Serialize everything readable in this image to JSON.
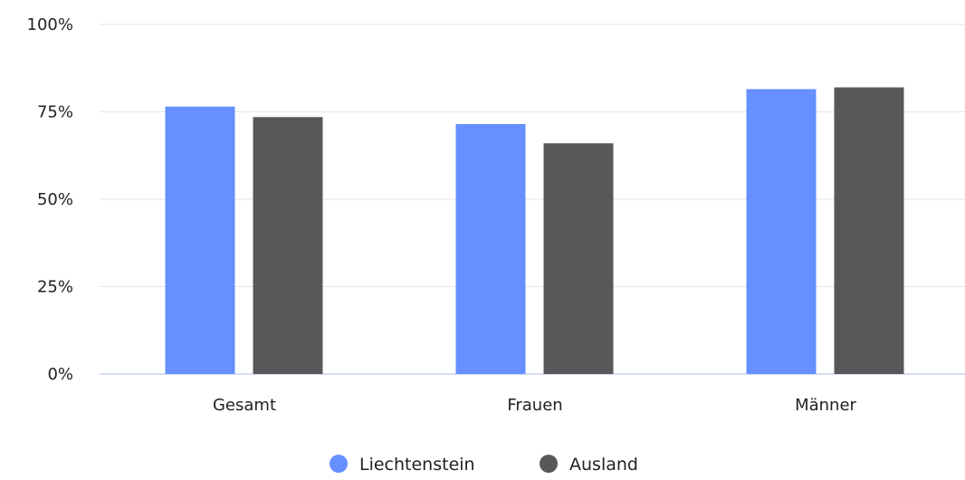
{
  "chart_data": {
    "type": "bar",
    "categories": [
      "Gesamt",
      "Frauen",
      "Männer"
    ],
    "series": [
      {
        "name": "Liechtenstein",
        "color": "#6690ff",
        "values": [
          76.5,
          71.5,
          81.5
        ]
      },
      {
        "name": "Ausland",
        "color": "#58585a",
        "values": [
          73.5,
          66.0,
          82.0
        ]
      }
    ],
    "ylim": [
      0,
      100
    ],
    "yticks": [
      0,
      25,
      50,
      75,
      100
    ],
    "ytick_format": "{v}%",
    "title": "",
    "xlabel": "",
    "ylabel": "",
    "grid": true,
    "legend_position": "bottom-center"
  }
}
